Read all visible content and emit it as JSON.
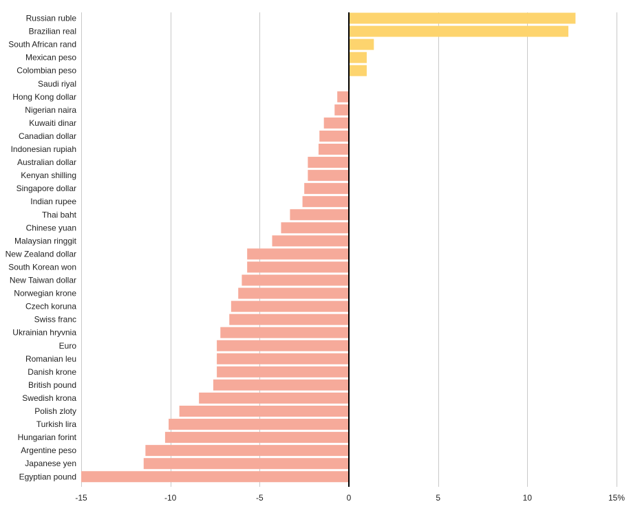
{
  "chart_data": {
    "type": "bar",
    "orientation": "horizontal",
    "title": "",
    "xlabel": "",
    "ylabel": "",
    "xlim": [
      -15,
      15
    ],
    "x_ticks": [
      -15,
      -10,
      -5,
      0,
      5,
      10,
      15
    ],
    "x_tick_labels": [
      "-15",
      "-10",
      "-5",
      "0",
      "5",
      "10",
      "15%"
    ],
    "grid": "vertical",
    "colors": {
      "positive": "#fdd46e",
      "negative": "#f6aa9a",
      "zero_line": "#000000",
      "grid": "#c8c8c8"
    },
    "categories": [
      "Russian ruble",
      "Brazilian real",
      "South African rand",
      "Mexican peso",
      "Colombian peso",
      "Saudi riyal",
      "Hong Kong dollar",
      "Nigerian naira",
      "Kuwaiti dinar",
      "Canadian dollar",
      "Indonesian rupiah",
      "Australian dollar",
      "Kenyan shilling",
      "Singapore dollar",
      "Indian rupee",
      "Thai baht",
      "Chinese yuan",
      "Malaysian ringgit",
      "New Zealand dollar",
      "South Korean won",
      "New Taiwan dollar",
      "Norwegian krone",
      "Czech koruna",
      "Swiss franc",
      "Ukrainian hryvnia",
      "Euro",
      "Romanian leu",
      "Danish krone",
      "British pound",
      "Swedish krona",
      "Polish zloty",
      "Turkish lira",
      "Hungarian forint",
      "Argentine peso",
      "Japanese yen",
      "Egyptian pound"
    ],
    "values": [
      12.7,
      12.3,
      1.4,
      1.0,
      1.0,
      0.05,
      -0.65,
      -0.8,
      -1.4,
      -1.65,
      -1.7,
      -2.3,
      -2.3,
      -2.5,
      -2.6,
      -3.3,
      -3.8,
      -4.3,
      -5.7,
      -5.7,
      -6.0,
      -6.2,
      -6.6,
      -6.7,
      -7.2,
      -7.4,
      -7.4,
      -7.4,
      -7.6,
      -8.4,
      -9.5,
      -10.1,
      -10.3,
      -11.4,
      -11.5,
      -15.0
    ]
  }
}
